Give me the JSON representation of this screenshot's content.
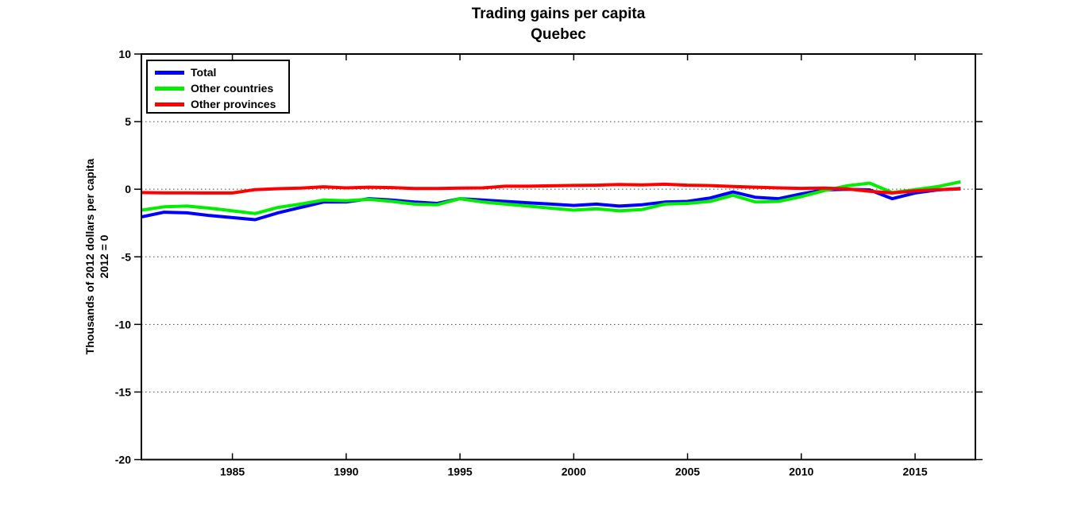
{
  "page": {
    "background": "#ffffff"
  },
  "chart_data": {
    "type": "line",
    "title": "Trading gains per capita",
    "subtitle": "Quebec",
    "ylabel_line1": "Thousands of 2012 dollars per capita",
    "ylabel_line2": "2012 = 0",
    "xlim": [
      1981,
      2017.65
    ],
    "ylim": [
      -20,
      10
    ],
    "xticks": [
      1985,
      1990,
      1995,
      2000,
      2005,
      2010,
      2015
    ],
    "yticks": [
      10,
      5,
      0,
      -5,
      -10,
      -15,
      -20
    ],
    "grid_yticks": [
      5,
      0,
      -5,
      -10,
      -15
    ],
    "grid_style": "dotted",
    "legend_position": "top-left",
    "axis_color": "#000000",
    "x": [
      1981,
      1982,
      1983,
      1984,
      1985,
      1986,
      1987,
      1988,
      1989,
      1990,
      1991,
      1992,
      1993,
      1994,
      1995,
      1996,
      1997,
      1998,
      1999,
      2000,
      2001,
      2002,
      2003,
      2004,
      2005,
      2006,
      2007,
      2008,
      2009,
      2010,
      2011,
      2012,
      2013,
      2014,
      2015,
      2016,
      2017
    ],
    "series": [
      {
        "name": "Total",
        "color": "#0000FF",
        "values": [
          -2.05,
          -1.7,
          -1.75,
          -1.95,
          -2.1,
          -2.25,
          -1.75,
          -1.35,
          -0.95,
          -0.95,
          -0.7,
          -0.8,
          -0.95,
          -1.05,
          -0.7,
          -0.8,
          -0.9,
          -1.0,
          -1.1,
          -1.2,
          -1.1,
          -1.25,
          -1.15,
          -0.95,
          -0.9,
          -0.65,
          -0.2,
          -0.6,
          -0.7,
          -0.35,
          -0.05,
          0.0,
          -0.05,
          -0.7,
          -0.28,
          -0.05,
          0.05
        ]
      },
      {
        "name": "Other countries",
        "color": "#00EE00",
        "values": [
          -1.55,
          -1.3,
          -1.25,
          -1.4,
          -1.6,
          -1.8,
          -1.35,
          -1.1,
          -0.8,
          -0.85,
          -0.75,
          -0.9,
          -1.1,
          -1.15,
          -0.7,
          -0.95,
          -1.1,
          -1.25,
          -1.4,
          -1.55,
          -1.45,
          -1.6,
          -1.5,
          -1.1,
          -1.05,
          -0.9,
          -0.45,
          -0.95,
          -0.9,
          -0.55,
          -0.1,
          0.25,
          0.45,
          -0.25,
          -0.03,
          0.2,
          0.55
        ]
      },
      {
        "name": "Other provinces",
        "color": "#FF0000",
        "values": [
          -0.25,
          -0.27,
          -0.27,
          -0.28,
          -0.28,
          -0.03,
          0.04,
          0.08,
          0.18,
          0.1,
          0.15,
          0.12,
          0.05,
          0.05,
          0.08,
          0.1,
          0.22,
          0.22,
          0.25,
          0.28,
          0.3,
          0.35,
          0.32,
          0.37,
          0.3,
          0.27,
          0.2,
          0.15,
          0.1,
          0.06,
          0.08,
          0.02,
          -0.15,
          -0.28,
          -0.12,
          -0.04,
          0.02
        ]
      }
    ]
  }
}
